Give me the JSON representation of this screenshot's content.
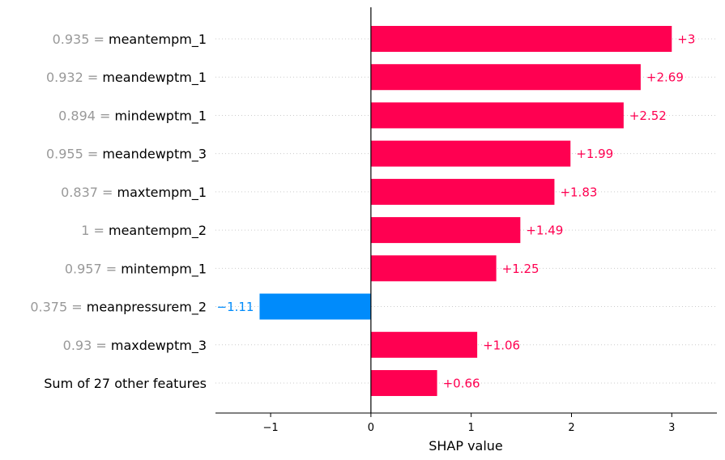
{
  "chart_data": {
    "type": "bar",
    "orientation": "horizontal",
    "title": "",
    "xlabel": "SHAP value",
    "ylabel": "",
    "xlim": [
      -1.55,
      3.45
    ],
    "xticks": [
      -1,
      0,
      1,
      2,
      3
    ],
    "xtick_labels": [
      "−1",
      "0",
      "1",
      "2",
      "3"
    ],
    "grid": false,
    "features": [
      {
        "value": "0.935",
        "name": "meantempm_1",
        "shap": 3.0,
        "label": "+3"
      },
      {
        "value": "0.932",
        "name": "meandewptm_1",
        "shap": 2.69,
        "label": "+2.69"
      },
      {
        "value": "0.894",
        "name": "mindewptm_1",
        "shap": 2.52,
        "label": "+2.52"
      },
      {
        "value": "0.955",
        "name": "meandewptm_3",
        "shap": 1.99,
        "label": "+1.99"
      },
      {
        "value": "0.837",
        "name": "maxtempm_1",
        "shap": 1.83,
        "label": "+1.83"
      },
      {
        "value": "1",
        "name": "meantempm_2",
        "shap": 1.49,
        "label": "+1.49"
      },
      {
        "value": "0.957",
        "name": "mintempm_1",
        "shap": 1.25,
        "label": "+1.25"
      },
      {
        "value": "0.375",
        "name": "meanpressurem_2",
        "shap": -1.11,
        "label": "−1.11"
      },
      {
        "value": "0.93",
        "name": "maxdewptm_3",
        "shap": 1.06,
        "label": "+1.06"
      },
      {
        "value": "",
        "name": "Sum of 27 other features",
        "shap": 0.66,
        "label": "+0.66"
      }
    ],
    "colors": {
      "positive": "#ff0051",
      "negative": "#008bfb",
      "feature_value": "#999999",
      "zero_line": "#000000",
      "grid_dots": "#cccccc"
    }
  }
}
